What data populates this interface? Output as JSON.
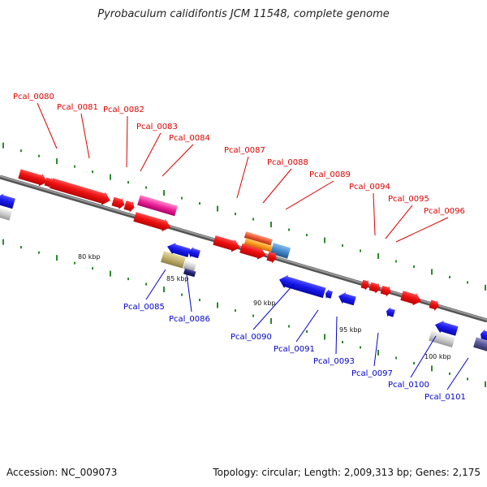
{
  "title": "Pyrobaculum calidifontis JCM 11548, complete genome",
  "footer": {
    "accession": "Accession: NC_009073",
    "topology": "Topology: circular; Length: 2,009,313 bp; Genes: 2,175"
  },
  "colors": {
    "forward_label": "#dd0000",
    "reverse_label": "#0000cc",
    "backbone": "#888888",
    "tick": "#2a8a2a",
    "forward_gene": "#ee1111",
    "reverse_gene": "#1a1aee"
  },
  "scale_labels": [
    "80 kbp",
    "85 kbp",
    "90 kbp",
    "95 kbp",
    "100 kbp"
  ],
  "forward_genes": [
    {
      "label": "Pcal_0080"
    },
    {
      "label": "Pcal_0081"
    },
    {
      "label": "Pcal_0082"
    },
    {
      "label": "Pcal_0083"
    },
    {
      "label": "Pcal_0084"
    },
    {
      "label": "Pcal_0087"
    },
    {
      "label": "Pcal_0088"
    },
    {
      "label": "Pcal_0089"
    },
    {
      "label": "Pcal_0094"
    },
    {
      "label": "Pcal_0095"
    },
    {
      "label": "Pcal_0096"
    }
  ],
  "reverse_genes": [
    {
      "label": "Pcal_0085"
    },
    {
      "label": "Pcal_0086"
    },
    {
      "label": "Pcal_0090"
    },
    {
      "label": "Pcal_0091"
    },
    {
      "label": "Pcal_0093"
    },
    {
      "label": "Pcal_0097"
    },
    {
      "label": "Pcal_0100"
    },
    {
      "label": "Pcal_0101"
    }
  ]
}
